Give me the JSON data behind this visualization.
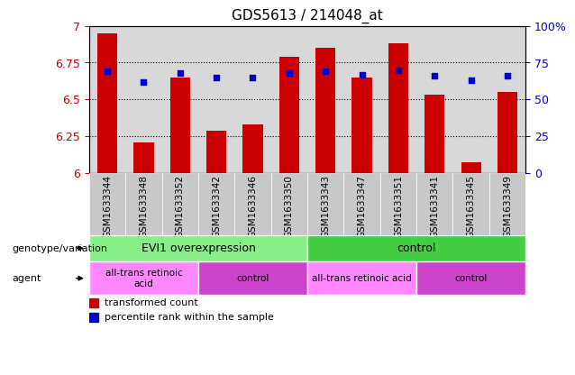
{
  "title": "GDS5613 / 214048_at",
  "samples": [
    "GSM1633344",
    "GSM1633348",
    "GSM1633352",
    "GSM1633342",
    "GSM1633346",
    "GSM1633350",
    "GSM1633343",
    "GSM1633347",
    "GSM1633351",
    "GSM1633341",
    "GSM1633345",
    "GSM1633349"
  ],
  "bar_values": [
    6.95,
    6.21,
    6.65,
    6.29,
    6.33,
    6.79,
    6.85,
    6.65,
    6.88,
    6.53,
    6.07,
    6.55
  ],
  "dot_values_pct": [
    69,
    62,
    68,
    65,
    65,
    68,
    69,
    67,
    70,
    66,
    63,
    66
  ],
  "ylim": [
    6.0,
    7.0
  ],
  "yticks": [
    6.0,
    6.25,
    6.5,
    6.75,
    7.0
  ],
  "ytick_labels": [
    "6",
    "6.25",
    "6.5",
    "6.75",
    "7"
  ],
  "right_yticks": [
    0,
    25,
    50,
    75,
    100
  ],
  "right_ytick_labels": [
    "0",
    "25",
    "50",
    "75",
    "100%"
  ],
  "bar_color": "#cc0000",
  "dot_color": "#0000cc",
  "plot_bg_color": "#d8d8d8",
  "label_bg_color": "#c8c8c8",
  "genotype_groups": [
    {
      "label": "EVI1 overexpression",
      "start": 0,
      "end": 6,
      "color": "#88ee88"
    },
    {
      "label": "control",
      "start": 6,
      "end": 12,
      "color": "#44cc44"
    }
  ],
  "agent_groups": [
    {
      "label": "all-trans retinoic\nacid",
      "start": 0,
      "end": 3,
      "color": "#ff88ff"
    },
    {
      "label": "control",
      "start": 3,
      "end": 6,
      "color": "#cc44cc"
    },
    {
      "label": "all-trans retinoic acid",
      "start": 6,
      "end": 9,
      "color": "#ff88ff"
    },
    {
      "label": "control",
      "start": 9,
      "end": 12,
      "color": "#cc44cc"
    }
  ],
  "legend_bar_label": "transformed count",
  "legend_dot_label": "percentile rank within the sample",
  "genotype_row_label": "genotype/variation",
  "agent_row_label": "agent"
}
